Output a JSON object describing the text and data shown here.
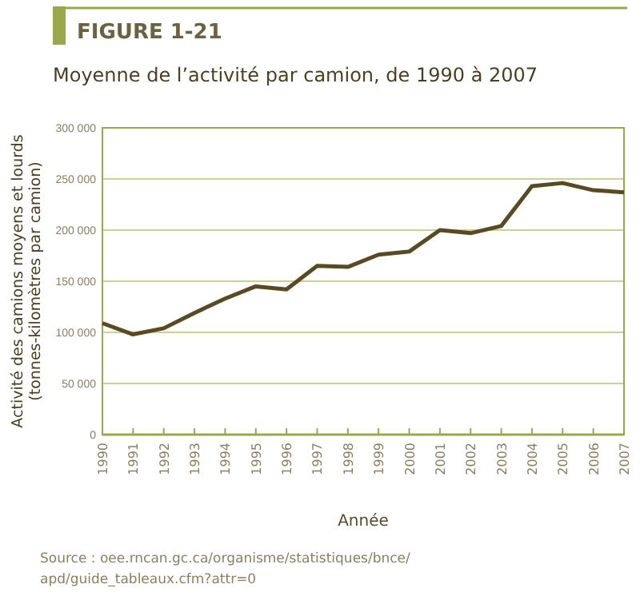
{
  "chart_data": {
    "type": "line",
    "title": "FIGURE 1-21",
    "subtitle": "Moyenne de l’activité par camion, de 1990 à 2007",
    "xlabel": "Année",
    "ylabel": "Activité des camions moyens et lourds (tonnes-kilomètres par camion)",
    "categories": [
      "1990",
      "1991",
      "1992",
      "1993",
      "1994",
      "1995",
      "1996",
      "1997",
      "1998",
      "1999",
      "2000",
      "2001",
      "2002",
      "2003",
      "2004",
      "2005",
      "2006",
      "2007"
    ],
    "series": [
      {
        "color": "#5a4a22",
        "values": [
          109000,
          98000,
          104000,
          119000,
          133000,
          145000,
          142000,
          165000,
          164000,
          176000,
          179000,
          200000,
          197000,
          204000,
          243000,
          246000,
          239000,
          237000
        ]
      }
    ],
    "ylim": [
      0,
      300000
    ],
    "yticks": [
      {
        "value": 0,
        "label": "0"
      },
      {
        "value": 50000,
        "label": "50 000"
      },
      {
        "value": 100000,
        "label": "100 000"
      },
      {
        "value": 150000,
        "label": "150 000"
      },
      {
        "value": 200000,
        "label": "200 000"
      },
      {
        "value": 250000,
        "label": "250 000"
      },
      {
        "value": 300000,
        "label": "300 000"
      }
    ],
    "grid": "y",
    "marker": "none",
    "line_style": "solid",
    "annotations": [
      "Source : oee.rncan.gc.ca/organisme/statistiques/bnce/apd/guide_tableaux.cfm?attr=0"
    ]
  }
}
